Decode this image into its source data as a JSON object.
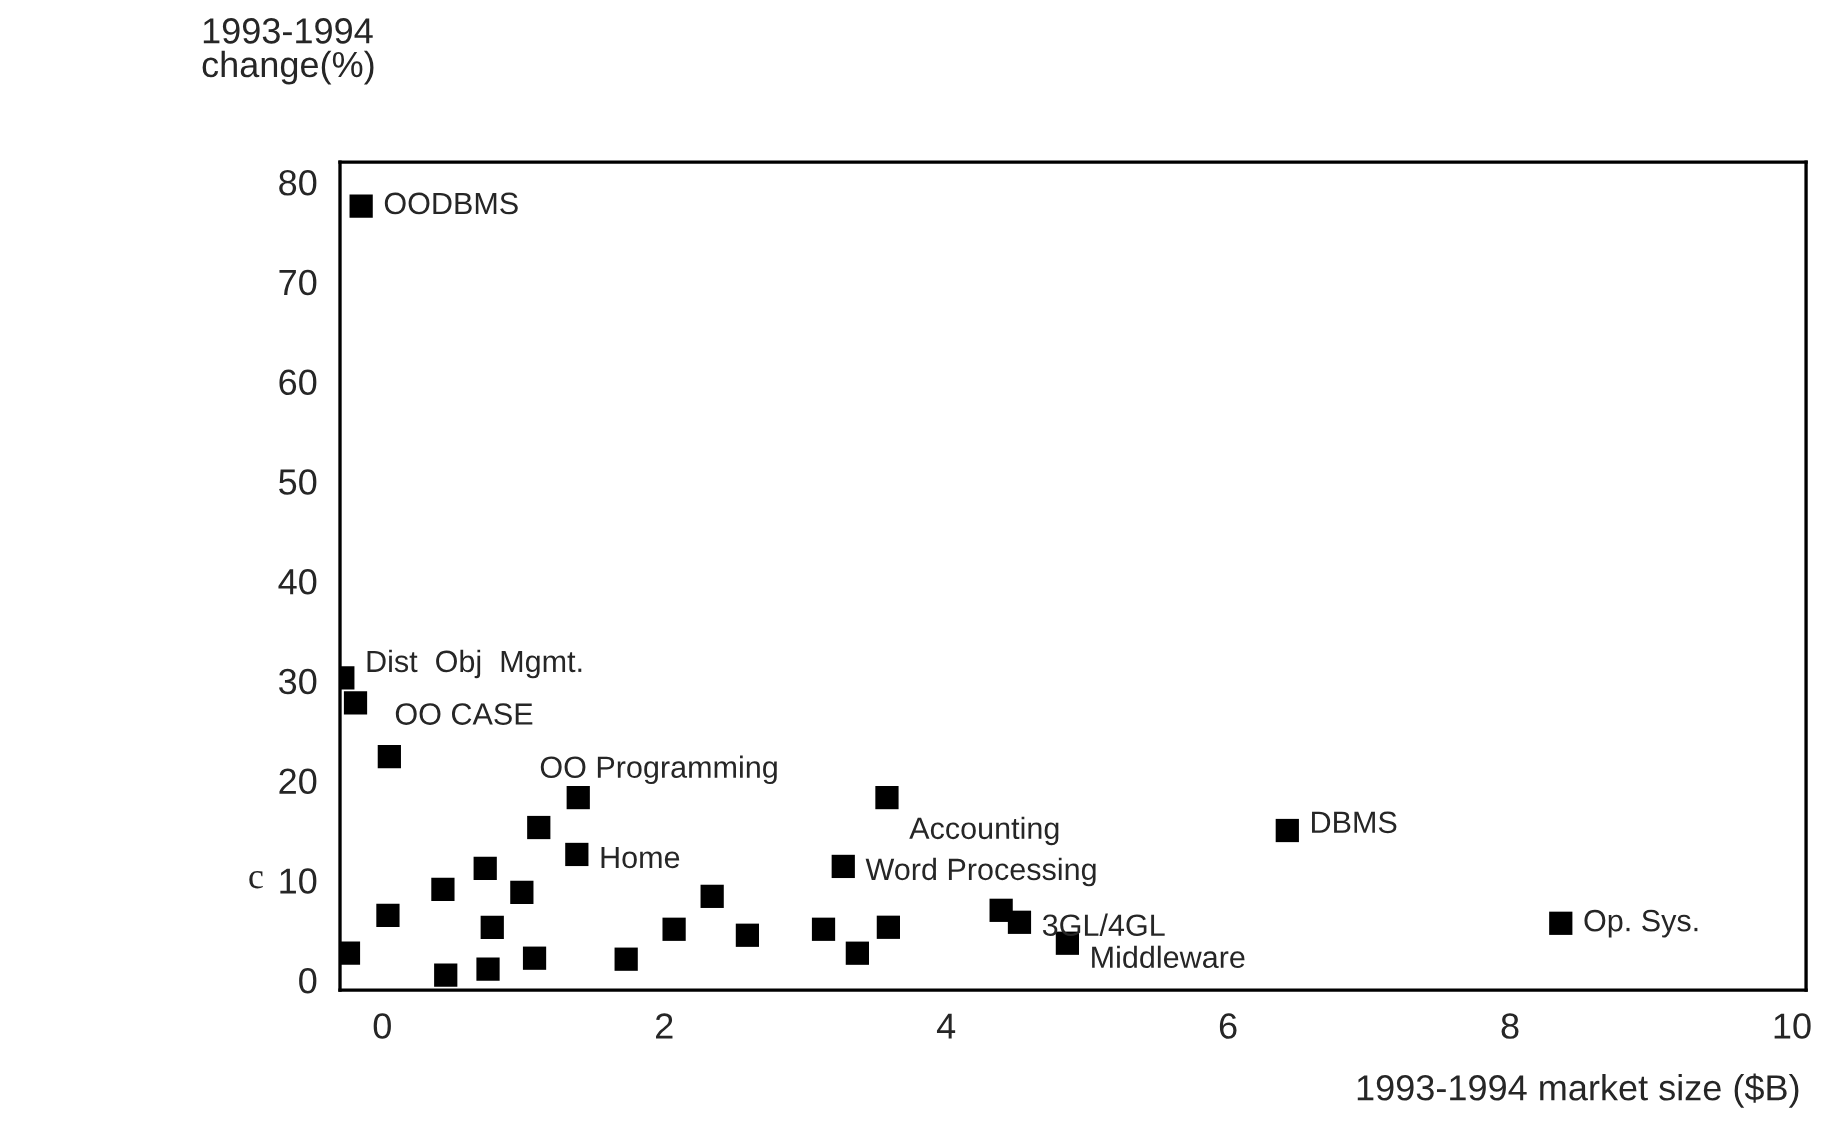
{
  "chart_data": {
    "type": "scatter",
    "xlabel": "1993-1994 market size ($B)",
    "ylabel": "1993-1994\nchange(%)",
    "x": [
      -0.15,
      -0.28,
      -0.19,
      0.05,
      -0.24,
      0.04,
      0.43,
      0.45,
      0.73,
      0.78,
      0.75,
      0.99,
      1.11,
      1.08,
      1.39,
      1.38,
      1.73,
      2.07,
      2.34,
      2.59,
      3.13,
      3.27,
      3.37,
      3.58,
      3.59,
      4.39,
      4.52,
      4.86,
      6.42,
      8.36
    ],
    "series": [
      {
        "color": "#000000",
        "values": [
          77.6,
          30.3,
          27.8,
          22.4,
          2.7,
          6.5,
          9.1,
          0.5,
          11.2,
          5.3,
          1.1,
          8.8,
          15.3,
          2.2,
          18.3,
          12.6,
          2.1,
          5.1,
          8.4,
          4.5,
          5.1,
          11.4,
          2.7,
          18.3,
          5.3,
          7.0,
          5.8,
          3.7,
          15.0,
          5.7
        ]
      }
    ],
    "marker": "square",
    "xlim": [
      -0.3,
      10.1
    ],
    "ylim": [
      -1,
      82
    ],
    "xticks": [
      0,
      2,
      4,
      6,
      8,
      10
    ],
    "yticks": [
      0,
      10,
      20,
      30,
      40,
      50,
      60,
      70,
      80
    ],
    "grid": false,
    "annotations": [
      {
        "text": "OODBMS",
        "x": -0.15,
        "y": 77.6
      },
      {
        "text": "Dist  Obj  Mgmt.",
        "x": -0.28,
        "y": 30.3
      },
      {
        "text": "OO CASE",
        "x": -0.19,
        "y": 27.8
      },
      {
        "text": "OO Programming",
        "x": 1.39,
        "y": 18.3
      },
      {
        "text": "Home",
        "x": 1.38,
        "y": 12.6
      },
      {
        "text": "Accounting",
        "x": 3.58,
        "y": 18.3
      },
      {
        "text": "Word Processing",
        "x": 3.27,
        "y": 11.4
      },
      {
        "text": "3GL/4GL",
        "x": 4.52,
        "y": 5.8
      },
      {
        "text": "Middleware",
        "x": 4.86,
        "y": 3.7
      },
      {
        "text": "DBMS",
        "x": 6.42,
        "y": 15.0
      },
      {
        "text": "Op. Sys.",
        "x": 8.36,
        "y": 5.7
      },
      "c"
    ]
  }
}
